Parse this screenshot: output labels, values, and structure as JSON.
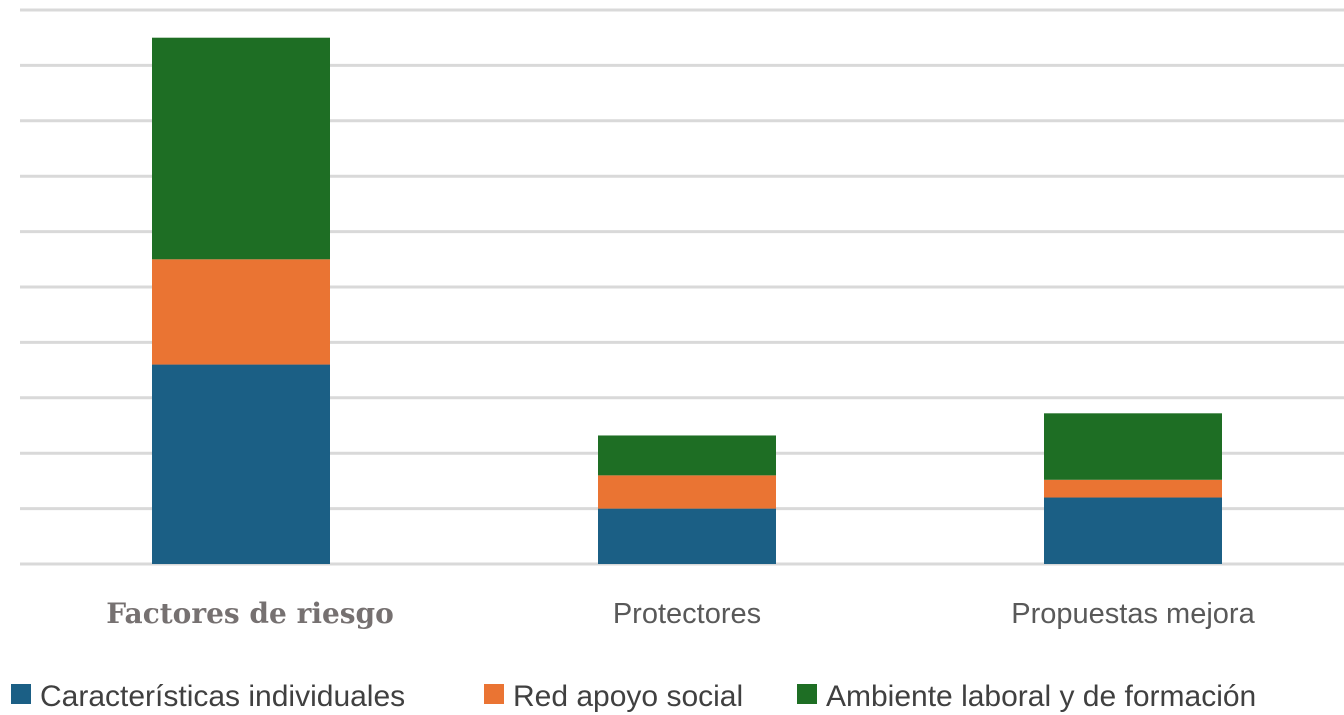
{
  "chart_data": {
    "type": "bar",
    "stacked": true,
    "categories": [
      "Factores de riesgo",
      "Protectores",
      "Propuestas mejora"
    ],
    "series": [
      {
        "name": "Características individuales",
        "values": [
          18,
          5,
          6
        ]
      },
      {
        "name": "Red apoyo social",
        "values": [
          9.5,
          3,
          1.6
        ]
      },
      {
        "name": "Ambiente laboral y de formación",
        "values": [
          20,
          3.6,
          6
        ]
      }
    ],
    "colors": [
      "#1b5f85",
      "#ea7433",
      "#1e6e24"
    ],
    "ylim": [
      0,
      50
    ],
    "y_gridlines": 10,
    "y_tick_labels_shown": false,
    "grid": true,
    "legend_placement": "bottom"
  }
}
